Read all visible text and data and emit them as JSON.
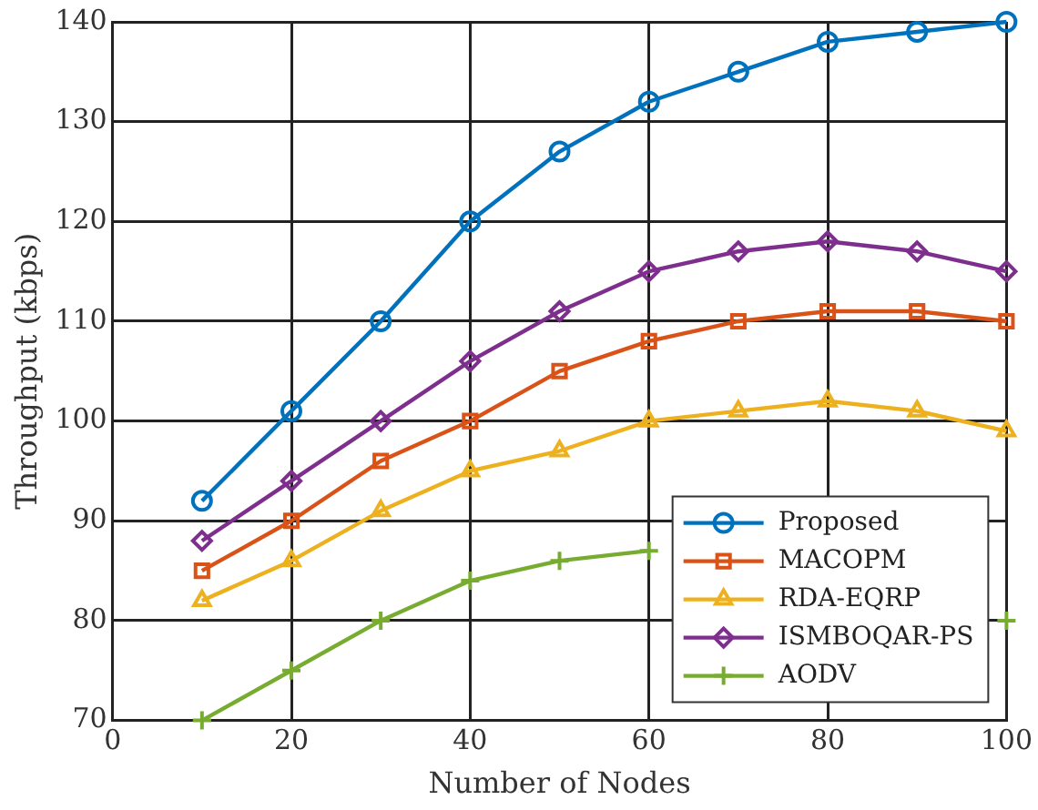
{
  "chart_data": {
    "type": "line",
    "xlabel": "Number of Nodes",
    "ylabel": "Throughput (kbps)",
    "x": [
      10,
      20,
      30,
      40,
      50,
      60,
      70,
      80,
      90,
      100
    ],
    "series": [
      {
        "name": "Proposed",
        "color": "#0072bd",
        "marker": "circle",
        "values": [
          92,
          101,
          110,
          120,
          127,
          132,
          135,
          138,
          139,
          140
        ]
      },
      {
        "name": "MACOPM",
        "color": "#d95319",
        "marker": "square",
        "values": [
          85,
          90,
          96,
          100,
          105,
          108,
          110,
          111,
          111,
          110
        ]
      },
      {
        "name": "RDA-EQRP",
        "color": "#edb120",
        "marker": "triangle",
        "values": [
          82,
          86,
          91,
          95,
          97,
          100,
          101,
          102,
          101,
          99
        ]
      },
      {
        "name": "ISMBOQAR-PS",
        "color": "#7e2f8e",
        "marker": "diamond",
        "values": [
          88,
          94,
          100,
          106,
          111,
          115,
          117,
          118,
          117,
          115
        ]
      },
      {
        "name": "AODV",
        "color": "#77ac30",
        "marker": "cross",
        "values": [
          70,
          75,
          80,
          84,
          86,
          87,
          null,
          null,
          null,
          80
        ]
      }
    ],
    "xlim": [
      0,
      100
    ],
    "xticks": [
      0,
      20,
      40,
      60,
      80,
      100
    ],
    "ylim": [
      70,
      140
    ],
    "yticks": [
      70,
      80,
      90,
      100,
      110,
      120,
      130,
      140
    ],
    "grid": true,
    "legend": "bottom right"
  }
}
